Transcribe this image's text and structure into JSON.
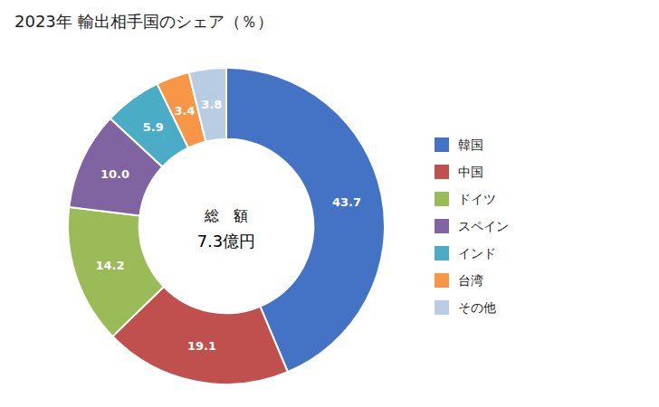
{
  "chart_data": {
    "type": "donut",
    "title": "2023年 輸出相手国のシェア（％）",
    "annotations": [
      "総　額",
      "7.3億円"
    ],
    "categories": [
      "韓国",
      "中国",
      "ドイツ",
      "スペイン",
      "インド",
      "台湾",
      "その他"
    ],
    "values": [
      43.7,
      19.1,
      14.2,
      10.0,
      5.9,
      3.4,
      3.8
    ],
    "value_labels": [
      "43.7",
      "19.1",
      "14.2",
      "10.0",
      "5.9",
      "3.4",
      "3.8"
    ],
    "colors": [
      "#4472C4",
      "#C0504D",
      "#9BBB59",
      "#8064A2",
      "#4BACC6",
      "#F79646",
      "#B8CCE4"
    ],
    "data_labels": true,
    "legend": "right"
  }
}
